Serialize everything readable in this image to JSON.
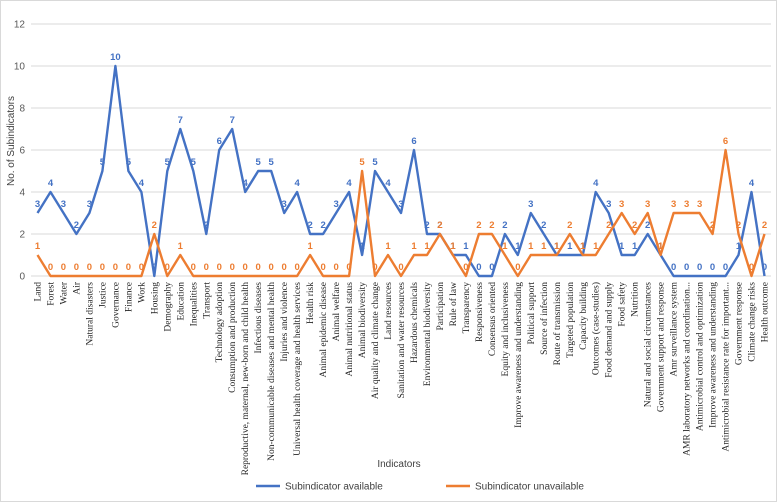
{
  "chart_data": {
    "type": "line",
    "title": "",
    "xlabel": "Indicators",
    "ylabel": "No. of Subindicators",
    "ylim": [
      0,
      12
    ],
    "yticks": [
      0,
      2,
      4,
      6,
      8,
      10,
      12
    ],
    "grid": true,
    "legend_position": "bottom",
    "categories": [
      "Land",
      "Forest",
      "Water",
      "Air",
      "Natural disasters",
      "Justice",
      "Governance",
      "Finance",
      "Work",
      "Housing",
      "Demography",
      "Education",
      "Inequalities",
      "Transport",
      "Technology adoption",
      "Consumption and production",
      "Reproductive, maternal, new-born and child health",
      "Infectious diseases",
      "Non-communicable diseases and mental health",
      "Injuries and violence",
      "Universal health coverage and health services",
      "Health risk",
      "Animal epidemic disease",
      "Animal welfare",
      "Animal nutritional status",
      "Animal biodiversity",
      "Air quality and climate change",
      "Land resources",
      "Sanitation and water resources",
      "Hazardous chemicals",
      "Environmental biodiversity",
      "Participation",
      "Rule of law",
      "Transparency",
      "Responsiveness",
      "Consensus oriented",
      "Equity and inclusiveness",
      "Improve awareness and understanding",
      "Political support",
      "Source of infection",
      "Route of transmission",
      "Targeted population",
      "Capacity building",
      "Outcomes (case-studies)",
      "Food demand and supply",
      "Food safety",
      "Nutrition",
      "Natural and social circumstances",
      "Government support and response",
      "Amr surveillance system",
      "AMR laboratory networks and coordination...",
      "Antimicrobial control and optimization",
      "Improve awareness and understanding",
      "Antimicrobial resistance rate for important...",
      "Government response",
      "Climate change risks",
      "Health outcome"
    ],
    "series": [
      {
        "name": "Subindicator available",
        "color": "#4472c4",
        "values": [
          3,
          4,
          3,
          2,
          3,
          5,
          10,
          5,
          4,
          0,
          5,
          7,
          5,
          2,
          6,
          7,
          4,
          5,
          5,
          3,
          4,
          2,
          2,
          3,
          4,
          1,
          5,
          4,
          3,
          6,
          2,
          2,
          1,
          1,
          0,
          0,
          2,
          1,
          3,
          2,
          1,
          1,
          1,
          4,
          3,
          1,
          1,
          2,
          1,
          0,
          0,
          0,
          0,
          0,
          1,
          4,
          0
        ]
      },
      {
        "name": "Subindicator unavailable",
        "color": "#ed7d31",
        "values": [
          1,
          0,
          0,
          0,
          0,
          0,
          0,
          0,
          0,
          2,
          0,
          1,
          0,
          0,
          0,
          0,
          0,
          0,
          0,
          0,
          0,
          1,
          0,
          0,
          0,
          5,
          0,
          1,
          0,
          1,
          1,
          2,
          1,
          0,
          2,
          2,
          1,
          0,
          1,
          1,
          1,
          2,
          1,
          1,
          2,
          3,
          2,
          3,
          1,
          3,
          3,
          3,
          2,
          6,
          2,
          0,
          2
        ]
      }
    ]
  }
}
